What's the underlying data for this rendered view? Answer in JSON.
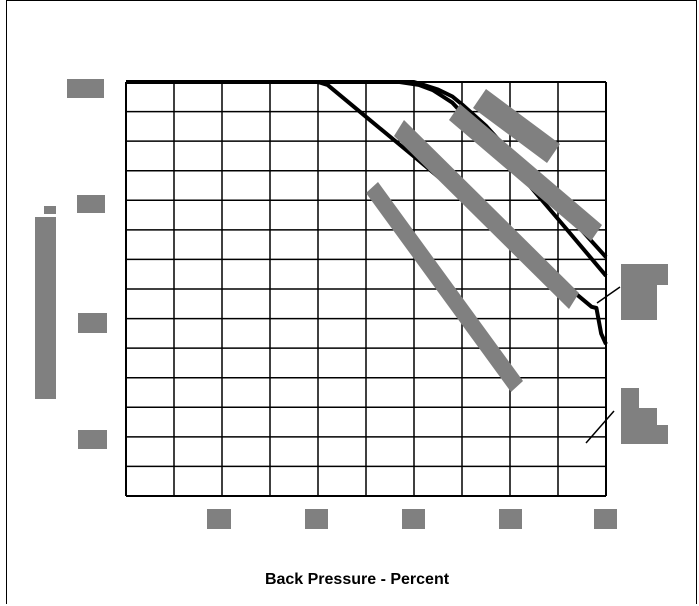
{
  "chart_data": {
    "type": "line",
    "title": "",
    "xlabel": "Back Pressure - Percent",
    "ylabel": "",
    "xlim": [
      0,
      100
    ],
    "ylim": [
      0,
      100
    ],
    "grid": true,
    "grid_divisions": {
      "x": 10,
      "y": 14
    },
    "series": [
      {
        "x": [
          0,
          40,
          42,
          50,
          60,
          70,
          80,
          90,
          94,
          97,
          98,
          99,
          100
        ],
        "y": [
          100,
          100,
          99.3,
          91.6,
          82,
          72.3,
          62.5,
          52.9,
          48.6,
          45.7,
          45.4,
          39.2,
          36.7
        ]
      },
      {
        "x": [
          0,
          57,
          61,
          64,
          66,
          68,
          70,
          80,
          90,
          100
        ],
        "y": [
          100,
          100,
          99.3,
          98,
          96.5,
          95,
          92.5,
          80.5,
          66.9,
          53.2
        ]
      },
      {
        "x": [
          0,
          60,
          62,
          65,
          68,
          70,
          75,
          80,
          90,
          100
        ],
        "y": [
          100,
          100,
          99.3,
          98.2,
          96.5,
          94.6,
          89.4,
          83,
          70.5,
          57.7
        ]
      }
    ],
    "redacted_labels": {
      "y_ticks": 4,
      "x_ticks": 5,
      "y_title": 1,
      "callouts": 2,
      "curve_bands": 4
    }
  },
  "colors": {
    "ink": "#000000",
    "redaction": "#808080",
    "background": "#ffffff"
  }
}
